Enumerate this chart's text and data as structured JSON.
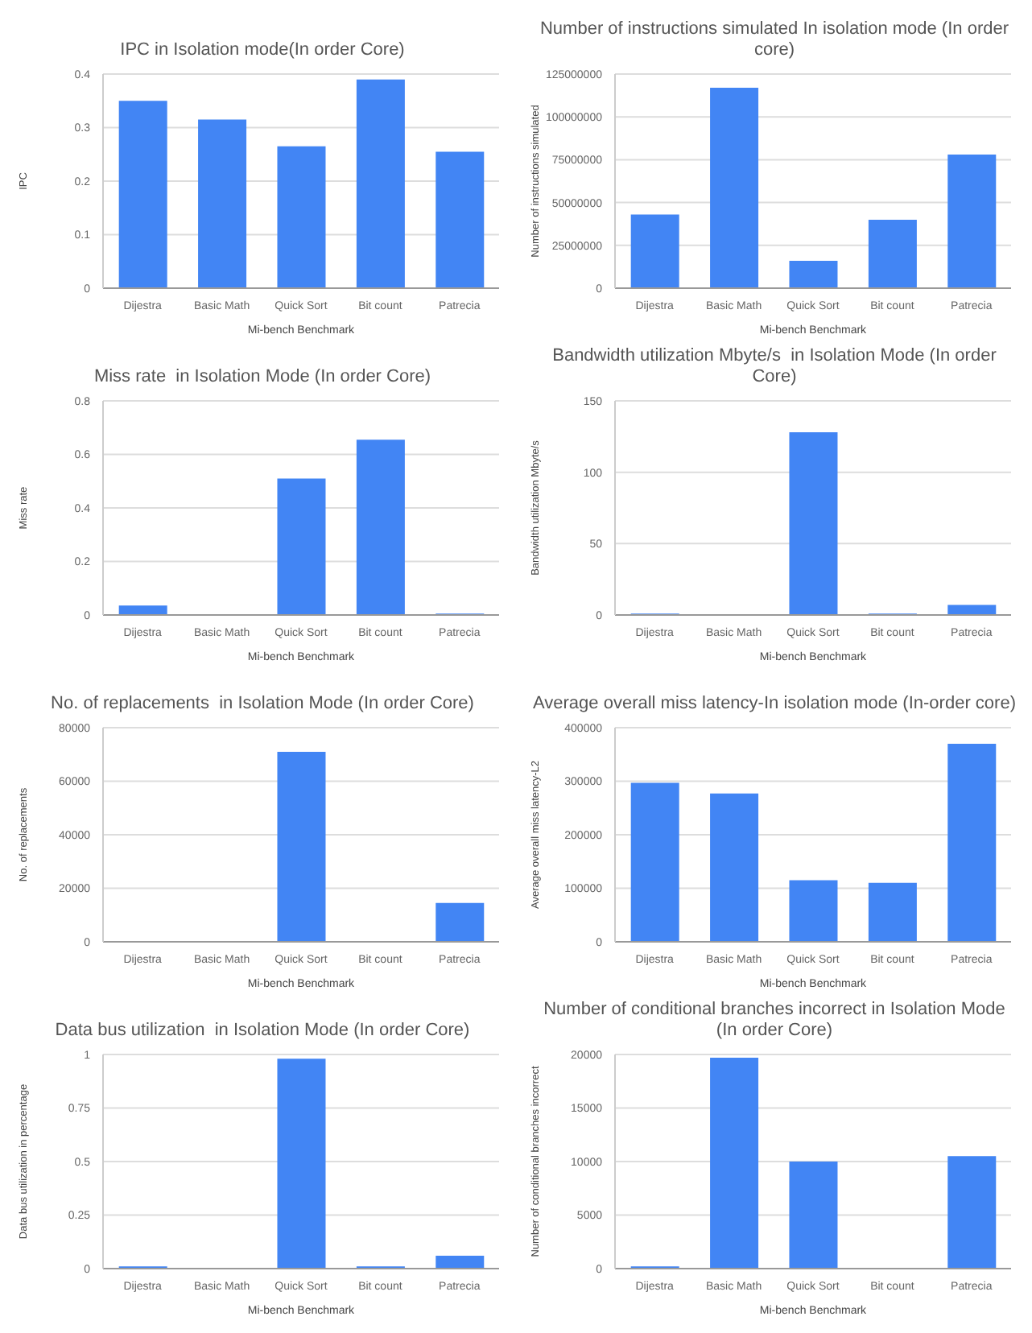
{
  "chart_data": [
    {
      "type": "bar",
      "title": "IPC in Isolation mode(In order Core)",
      "xlabel": "Mi-bench Benchmark",
      "ylabel": "IPC",
      "categories": [
        "Dijestra",
        "Basic Math",
        "Quick Sort",
        "Bit count",
        "Patrecia"
      ],
      "values": [
        0.35,
        0.315,
        0.265,
        0.39,
        0.255
      ],
      "color": "#4285f4",
      "ylim": [
        0,
        0.4
      ],
      "yticks": [
        0,
        0.1,
        0.2,
        0.3,
        0.4
      ],
      "grid": "y"
    },
    {
      "type": "bar",
      "title": "Number of instructions simulated In isolation mode (In order core)",
      "xlabel": "Mi-bench Benchmark",
      "ylabel": "Number of instructions simulated",
      "categories": [
        "Dijestra",
        "Basic Math",
        "Quick Sort",
        "Bit count",
        "Patrecia"
      ],
      "values": [
        43000000,
        117000000,
        16000000,
        40000000,
        78000000
      ],
      "color": "#4285f4",
      "ylim": [
        0,
        125000000
      ],
      "yticks": [
        0,
        25000000,
        50000000,
        75000000,
        100000000,
        125000000
      ],
      "grid": "y"
    },
    {
      "type": "bar",
      "title": "Miss rate  in Isolation Mode (In order Core)",
      "xlabel": "Mi-bench Benchmark",
      "ylabel": "Miss rate",
      "categories": [
        "Dijestra",
        "Basic Math",
        "Quick Sort",
        "Bit count",
        "Patrecia"
      ],
      "values": [
        0.035,
        0,
        0.51,
        0.655,
        0.005
      ],
      "color": "#4285f4",
      "ylim": [
        0,
        0.8
      ],
      "yticks": [
        0,
        0.2,
        0.4,
        0.6,
        0.8
      ],
      "grid": "y"
    },
    {
      "type": "bar",
      "title": "Bandwidth utilization Mbyte/s  in Isolation Mode (In order Core)",
      "xlabel": "Mi-bench Benchmark",
      "ylabel": "Bandwidth utilization Mbyte/s",
      "categories": [
        "Dijestra",
        "Basic Math",
        "Quick Sort",
        "Bit count",
        "Patrecia"
      ],
      "values": [
        1,
        0,
        128,
        1,
        7
      ],
      "color": "#4285f4",
      "ylim": [
        0,
        150
      ],
      "yticks": [
        0,
        50,
        100,
        150
      ],
      "grid": "y"
    },
    {
      "type": "bar",
      "title": "No. of replacements  in Isolation Mode (In order Core)",
      "xlabel": "Mi-bench Benchmark",
      "ylabel": "No. of replacements",
      "categories": [
        "Dijestra",
        "Basic Math",
        "Quick Sort",
        "Bit count",
        "Patrecia"
      ],
      "values": [
        0,
        0,
        71000,
        0,
        14500
      ],
      "color": "#4285f4",
      "ylim": [
        0,
        80000
      ],
      "yticks": [
        0,
        20000,
        40000,
        60000,
        80000
      ],
      "grid": "y"
    },
    {
      "type": "bar",
      "title": "Average overall miss latency-In isolation mode (In-order core)",
      "xlabel": "Mi-bench Benchmark",
      "ylabel": "Average overall miss latency-L2",
      "categories": [
        "Dijestra",
        "Basic Math",
        "Quick Sort",
        "Bit count",
        "Patrecia"
      ],
      "values": [
        297000,
        277000,
        115000,
        110000,
        370000
      ],
      "color": "#4285f4",
      "ylim": [
        0,
        400000
      ],
      "yticks": [
        0,
        100000,
        200000,
        300000,
        400000
      ],
      "grid": "y"
    },
    {
      "type": "bar",
      "title": "Data bus utilization  in Isolation Mode (In order Core)",
      "xlabel": "Mi-bench Benchmark",
      "ylabel": "Data bus utilization in percentage",
      "categories": [
        "Dijestra",
        "Basic Math",
        "Quick Sort",
        "Bit count",
        "Patrecia"
      ],
      "values": [
        0.01,
        0,
        0.98,
        0.01,
        0.06
      ],
      "color": "#4285f4",
      "ylim": [
        0,
        1
      ],
      "yticks": [
        0,
        0.25,
        0.5,
        0.75,
        1
      ],
      "grid": "y"
    },
    {
      "type": "bar",
      "title": "Number of conditional branches incorrect in Isolation Mode (In order Core)",
      "xlabel": "Mi-bench Benchmark",
      "ylabel": "Number of conditional branches incorrect",
      "categories": [
        "Dijestra",
        "Basic Math",
        "Quick Sort",
        "Bit count",
        "Patrecia"
      ],
      "values": [
        200,
        19700,
        10000,
        0,
        10500
      ],
      "color": "#4285f4",
      "ylim": [
        0,
        20000
      ],
      "yticks": [
        0,
        5000,
        10000,
        15000,
        20000
      ],
      "grid": "y"
    }
  ]
}
